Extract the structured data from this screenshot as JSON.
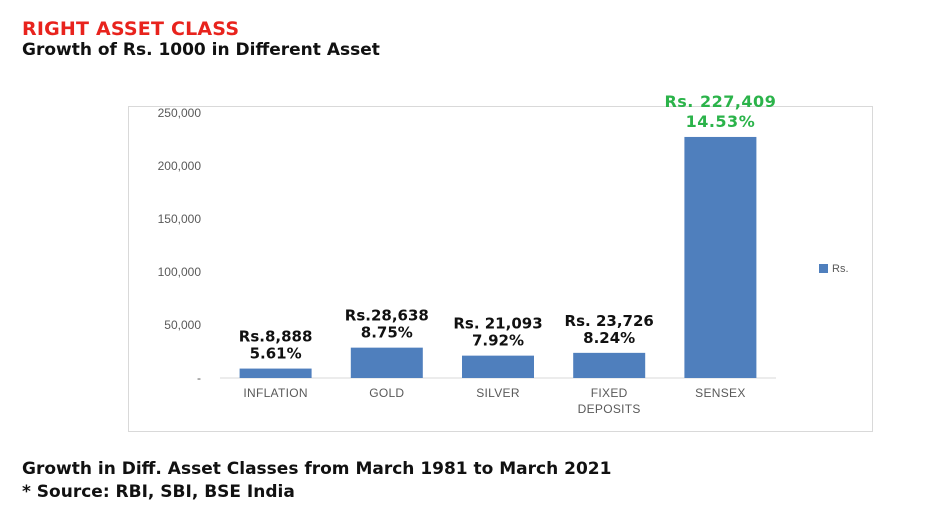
{
  "header": {
    "title": "RIGHT ASSET CLASS",
    "subtitle": "Growth of Rs. 1000 in Different Asset"
  },
  "footer": {
    "line1": "Growth in Diff. Asset Classes from March 1981 to March 2021",
    "line2": "* Source: RBI, SBI, BSE India"
  },
  "colors": {
    "bar": "#4f7fbd",
    "title": "#e8231d",
    "highlight": "#2bb34a"
  },
  "chart_data": {
    "type": "bar",
    "title": "Growth of Rs. 1000 in Different Asset",
    "categories": [
      [
        "INFLATION"
      ],
      [
        "GOLD"
      ],
      [
        "SILVER"
      ],
      [
        "FIXED",
        "DEPOSITS"
      ],
      [
        "SENSEX"
      ]
    ],
    "series": [
      {
        "name": "Rs.",
        "values": [
          8888,
          28638,
          21093,
          23726,
          227409
        ]
      }
    ],
    "data_labels": [
      [
        "Rs.8,888",
        "5.61%"
      ],
      [
        "Rs.28,638",
        "8.75%"
      ],
      [
        "Rs. 21,093",
        "7.92%"
      ],
      [
        "Rs. 23,726",
        "8.24%"
      ],
      [
        "Rs. 227,409",
        "14.53%"
      ]
    ],
    "highlight_index": 4,
    "y_ticks": [
      0,
      50000,
      100000,
      150000,
      200000,
      250000
    ],
    "y_tick_labels": [
      "-",
      "50,000",
      "100,000",
      "150,000",
      "200,000",
      "250,000"
    ],
    "ylim": [
      0,
      250000
    ],
    "grid": false,
    "legend": {
      "position": "right",
      "entries": [
        "Rs."
      ]
    }
  }
}
